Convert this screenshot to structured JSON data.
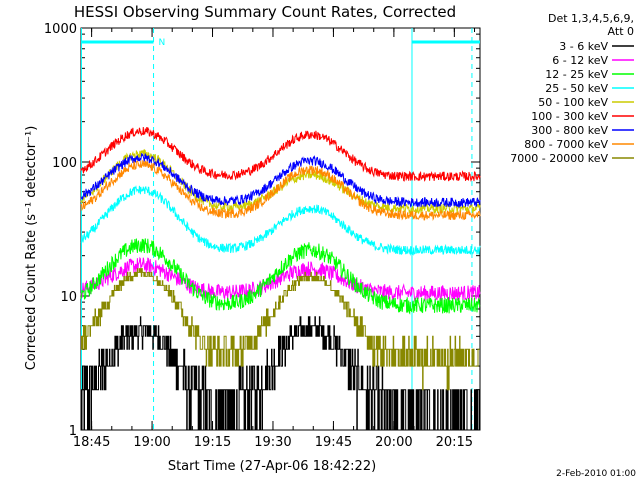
{
  "chart_data": {
    "type": "line",
    "title": "HESSI Observing Summary Count Rates, Corrected",
    "xlabel": "Start Time (27-Apr-06 18:42:22)",
    "ylabel": "Corrected Count Rate (s⁻¹ detector⁻¹)",
    "yscale": "log",
    "ylim": [
      1,
      1000
    ],
    "xlim_minutes": [
      0,
      99
    ],
    "x_tick_labels": [
      "18:45",
      "19:00",
      "19:15",
      "19:30",
      "19:45",
      "20:00",
      "20:15"
    ],
    "y_tick_labels": [
      "1",
      "10",
      "100",
      "1000"
    ],
    "legend_header": [
      "Det 1,3,4,5,6,9,",
      "Att 0"
    ],
    "annotation_label": "N",
    "footer_date": "2-Feb-2010 01:00",
    "series": [
      {
        "name": "3 - 6 keV",
        "color": "#000000",
        "base": 1.3,
        "peak1": 5.5,
        "peak2": 5.8
      },
      {
        "name": "6 - 12 keV",
        "color": "#ff00ff",
        "base": 10.5,
        "peak1": 17,
        "peak2": 16
      },
      {
        "name": "12 - 25 keV",
        "color": "#00ff00",
        "base": 8.5,
        "peak1": 24,
        "peak2": 22
      },
      {
        "name": "25 - 50 keV",
        "color": "#00ffff",
        "base": 22,
        "peak1": 62,
        "peak2": 45
      },
      {
        "name": "50 - 100 keV",
        "color": "#cccc00",
        "base": 45,
        "peak1": 115,
        "peak2": 80
      },
      {
        "name": "100 - 300 keV",
        "color": "#ff0000",
        "base": 78,
        "peak1": 170,
        "peak2": 160
      },
      {
        "name": "300 - 800 keV",
        "color": "#0000ff",
        "base": 50,
        "peak1": 108,
        "peak2": 102
      },
      {
        "name": "800 - 7000 keV",
        "color": "#ff8800",
        "base": 40,
        "peak1": 95,
        "peak2": 88
      },
      {
        "name": "7000 - 20000 keV",
        "color": "#888800",
        "base": 3.5,
        "peak1": 15,
        "peak2": 14
      }
    ],
    "peak_times_minutes": [
      15,
      57
    ],
    "markers": {
      "night_bars": [
        [
          0,
          18
        ],
        [
          82,
          99
        ]
      ],
      "dashed_lines_minutes": [
        18,
        97
      ],
      "solid_lines_minutes": [
        0,
        82
      ]
    }
  }
}
